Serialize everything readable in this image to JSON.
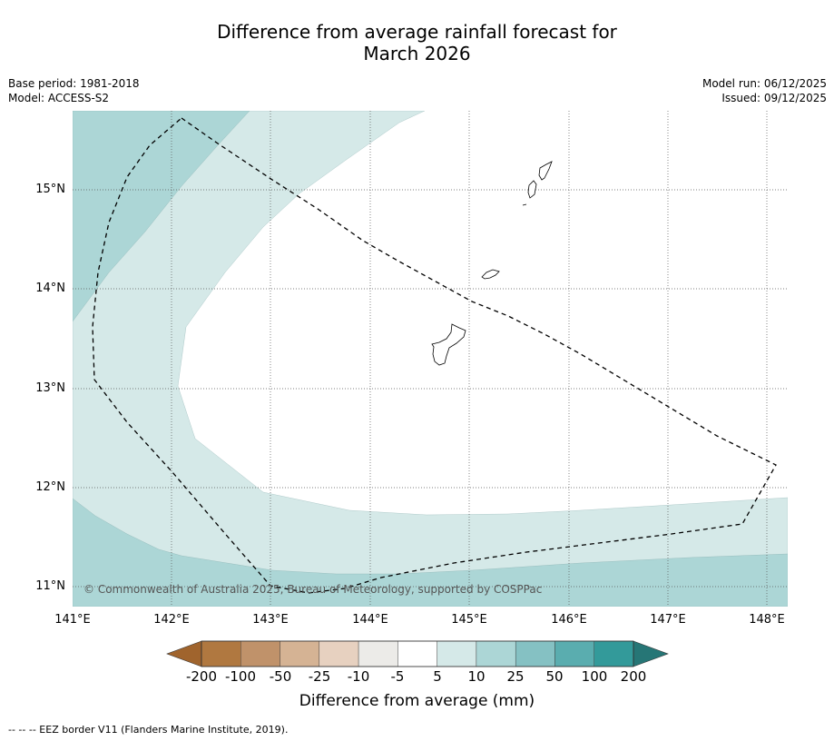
{
  "title_line1": "Difference from average rainfall forecast for",
  "title_line2": "March 2026",
  "base_period": "Base period: 1981-2018",
  "model": "Model: ACCESS-S2",
  "model_run": "Model run: 06/12/2025",
  "issued": "Issued: 09/12/2025",
  "copyright": "© Commonwealth of Australia 2025, Bureau of Meteorology, supported by COSPPac",
  "lat_labels": [
    "15°N",
    "14°N",
    "13°N",
    "12°N",
    "11°N"
  ],
  "lon_labels": [
    "141°E",
    "142°E",
    "143°E",
    "144°E",
    "145°E",
    "146°E",
    "147°E",
    "148°E"
  ],
  "colorbar": {
    "title": "Difference from average (mm)",
    "ticks": [
      "-200",
      "-100",
      "-50",
      "-25",
      "-10",
      "-5",
      "5",
      "10",
      "25",
      "50",
      "100",
      "200"
    ],
    "colors": [
      "#a0642d",
      "#b07840",
      "#c0926a",
      "#d5b394",
      "#e7d1c0",
      "#ecebe8",
      "#ffffff",
      "#d5e9e8",
      "#acd6d6",
      "#85c1c3",
      "#5aadaf",
      "#339a9a",
      "#267676"
    ]
  },
  "footer": "--  --  -- EEZ border V11 (Flanders Marine Institute, 2019)."
}
